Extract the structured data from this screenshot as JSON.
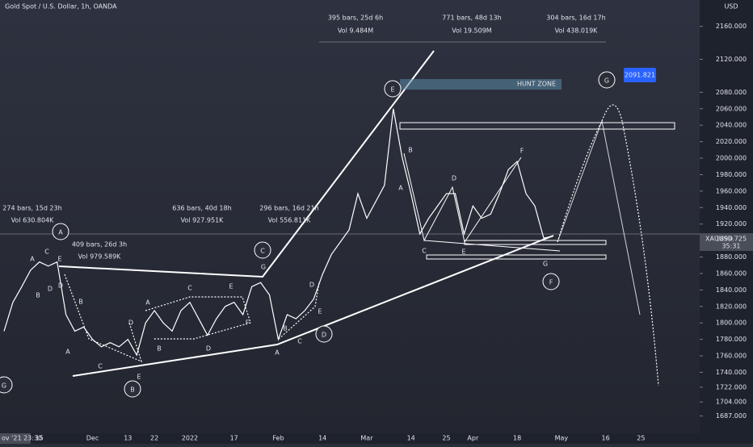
{
  "chart_data": {
    "type": "line",
    "title": "Gold Spot / U.S. Dollar, 1h, OANDA",
    "currency": "USD",
    "symbol": "XAUUSD",
    "last_price": 1899.725,
    "last_price_label": "1899.725",
    "countdown": "35:31",
    "time_label": "ov '21  23:30",
    "color": "#ffffff",
    "categories": [
      null,
      null,
      null,
      null,
      "15",
      null,
      null,
      null,
      null,
      null,
      "Dec",
      null,
      null,
      null,
      "13",
      null,
      null,
      "22",
      null,
      null,
      null,
      "2022",
      null,
      null,
      null,
      null,
      "17",
      null,
      null,
      null,
      null,
      "Feb",
      null,
      null,
      null,
      null,
      "14",
      null,
      null,
      null,
      null,
      "Mar",
      null,
      null,
      null,
      null,
      "14",
      null,
      null,
      null,
      "25",
      null,
      null,
      "Apr",
      null,
      null,
      null,
      null,
      "18",
      null,
      null,
      null,
      null,
      "May",
      null,
      null,
      null,
      null,
      "16",
      null,
      null,
      null,
      "25",
      null,
      null,
      null,
      null,
      null,
      null,
      null
    ],
    "values": [
      1790,
      1825,
      1844,
      1864,
      1874,
      1869,
      1874,
      1810,
      1790,
      1795,
      1780,
      1771,
      1776,
      1771,
      1780,
      1761,
      1800,
      1815,
      1800,
      1790,
      1815,
      1825,
      1805,
      1785,
      1805,
      1820,
      1825,
      1810,
      1844,
      1849,
      1834,
      1780,
      1810,
      1805,
      1815,
      1829,
      1859,
      1883,
      1898,
      1913,
      1957,
      1927,
      1947,
      1967,
      2060,
      2001,
      1957,
      1908,
      1927,
      1942,
      1957,
      1957,
      1908,
      1942,
      1927,
      1932,
      1957,
      1986,
      1996,
      1957,
      1942,
      1903,
      1905,
      null,
      null,
      null,
      null,
      null,
      null,
      null,
      null,
      null,
      null,
      null,
      null,
      null,
      null,
      null,
      null,
      null
    ],
    "ylim": [
      1666,
      2192
    ],
    "yticks": [
      {
        "value": 2160,
        "label": "2160.000"
      },
      {
        "value": 2120,
        "label": "2120.000"
      },
      {
        "value": 2080,
        "label": "2080.000"
      },
      {
        "value": 2060,
        "label": "2060.000"
      },
      {
        "value": 2040,
        "label": "2040.000"
      },
      {
        "value": 2020,
        "label": "2020.000"
      },
      {
        "value": 2000,
        "label": "2000.000"
      },
      {
        "value": 1980,
        "label": "1980.000"
      },
      {
        "value": 1960,
        "label": "1960.000"
      },
      {
        "value": 1940,
        "label": "1940.000"
      },
      {
        "value": 1920,
        "label": "1920.000"
      },
      {
        "value": 1880,
        "label": "1880.000"
      },
      {
        "value": 1860,
        "label": "1860.000"
      },
      {
        "value": 1840,
        "label": "1840.000"
      },
      {
        "value": 1820,
        "label": "1820.000"
      },
      {
        "value": 1800,
        "label": "1800.000"
      },
      {
        "value": 1780,
        "label": "1780.000"
      },
      {
        "value": 1760,
        "label": "1760.000"
      },
      {
        "value": 1740,
        "label": "1740.000"
      },
      {
        "value": 1722,
        "label": "1722.000"
      },
      {
        "value": 1704,
        "label": "1704.000"
      },
      {
        "value": 1687,
        "label": "1687.000"
      }
    ],
    "grid": false,
    "annotations": [
      "A",
      "C",
      "B",
      "D",
      "E",
      "F",
      "G",
      "G",
      "A",
      "C",
      "E",
      "B",
      "D",
      "D",
      "B",
      "D",
      "A",
      "C",
      "E",
      "A",
      "C",
      "E",
      "B",
      "D",
      "F",
      "B",
      "D",
      "E",
      "A",
      "C",
      "G",
      "B",
      "D",
      "F",
      "A",
      "C",
      "E",
      "G",
      "274 bars, 15d 23h",
      "Vol 630.804K",
      "409 bars, 26d 3h",
      "Vol 979.589K",
      "636 bars, 40d 18h",
      "Vol 927.951K",
      "296 bars, 16d 21h",
      "Vol 556.811K",
      "395 bars, 25d 6h",
      "Vol 9.484M",
      "771 bars, 48d 13h",
      "Vol 19.509M",
      "304 bars, 16d 17h",
      "Vol 438.019K",
      "HUNT ZONE",
      "2091.821"
    ]
  }
}
